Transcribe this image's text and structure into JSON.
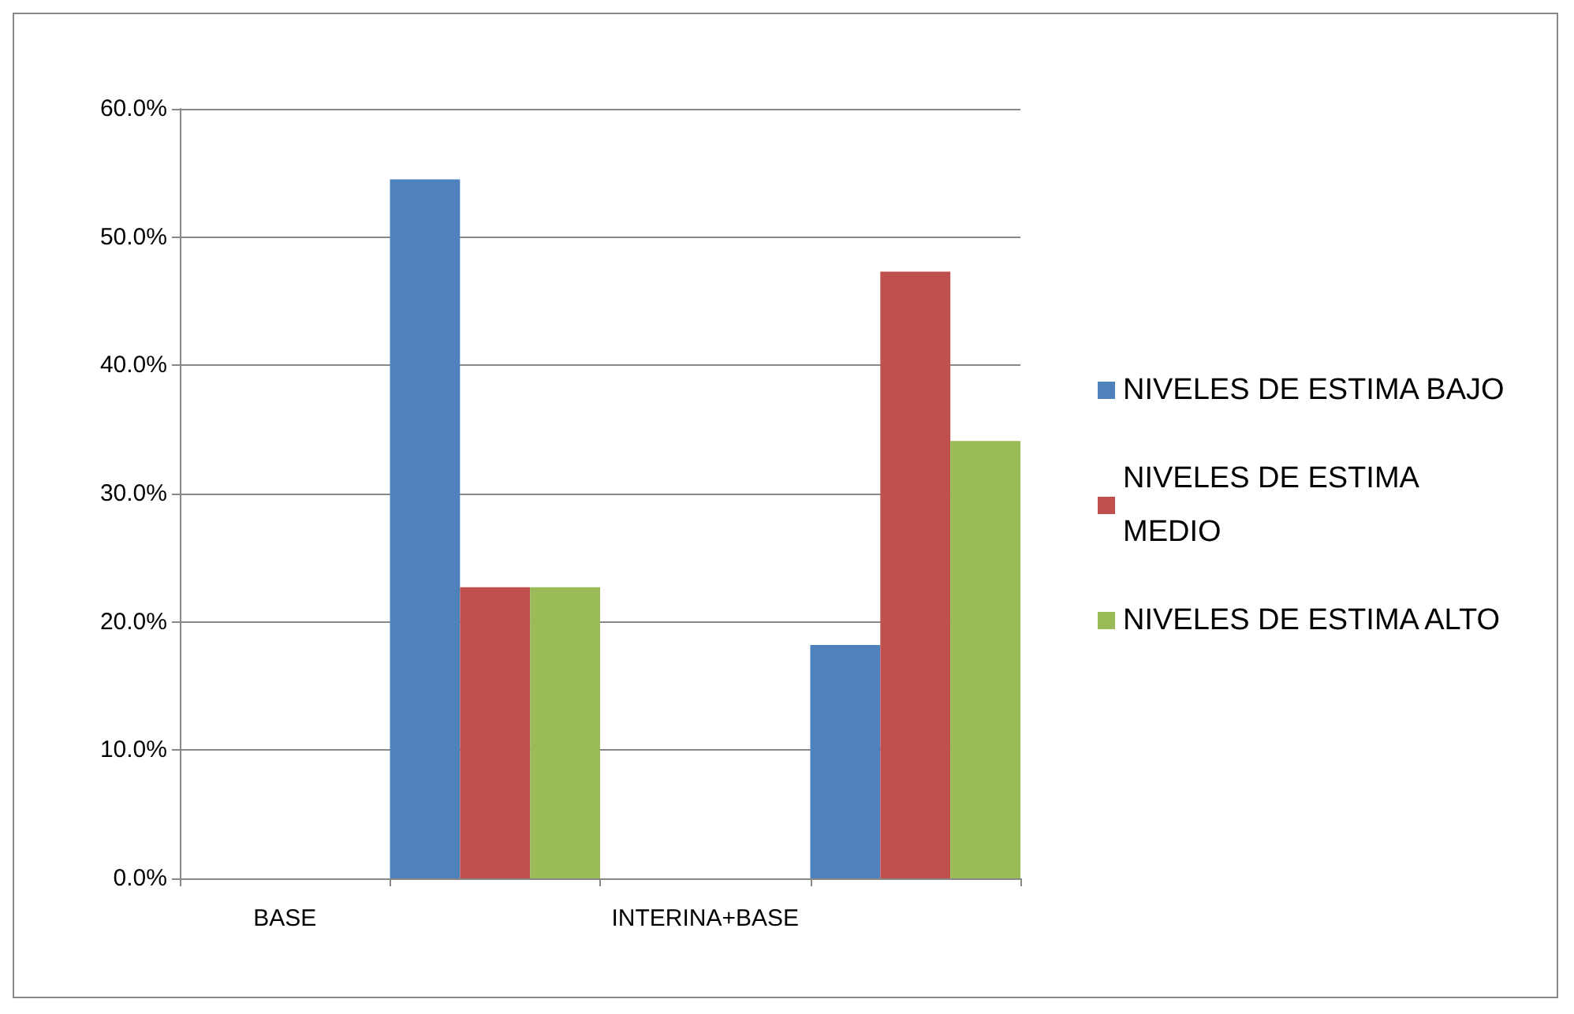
{
  "chart_data": {
    "type": "bar",
    "categories": [
      "BASE",
      null,
      "INTERINA+BASE",
      null
    ],
    "series": [
      {
        "name": "NIVELES DE ESTIMA BAJO",
        "color": "#4f81bd",
        "values": [
          null,
          54.5,
          null,
          18.2
        ]
      },
      {
        "name": "NIVELES DE ESTIMA MEDIO",
        "color": "#c0504d",
        "values": [
          null,
          22.7,
          null,
          47.3
        ]
      },
      {
        "name": "NIVELES DE ESTIMA ALTO",
        "color": "#9bbb59",
        "values": [
          null,
          22.7,
          null,
          34.1
        ]
      }
    ],
    "ylim": [
      0,
      60
    ],
    "yticks": [
      {
        "value": 0,
        "label": "0.0%"
      },
      {
        "value": 10,
        "label": "10.0%"
      },
      {
        "value": 20,
        "label": "20.0%"
      },
      {
        "value": 30,
        "label": "30.0%"
      },
      {
        "value": 40,
        "label": "40.0%"
      },
      {
        "value": 50,
        "label": "50.0%"
      },
      {
        "value": 60,
        "label": "60.0%"
      }
    ],
    "grid": "y",
    "legend": "right"
  }
}
